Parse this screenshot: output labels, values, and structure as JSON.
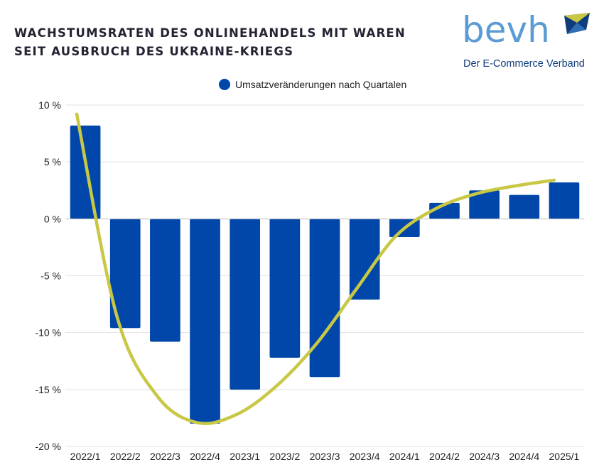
{
  "title_lines": [
    "WACHSTUMSRATEN DES ONLINEHANDELS MIT WAREN",
    "SEIT AUSBRUCH DES UKRAINE-KRIEGS"
  ],
  "logo": {
    "word": "bevh",
    "tagline": "Der E-Commerce Verband",
    "colors": {
      "word": "#5b9bd5",
      "mark_yellow": "#c8c845",
      "mark_blue": "#0f3c7a"
    }
  },
  "chart_data": {
    "type": "bar",
    "title": "WACHSTUMSRATEN DES ONLINEHANDELS MIT WAREN SEIT AUSBRUCH DES UKRAINE-KRIEGS",
    "xlabel": "",
    "ylabel": "",
    "categories": [
      "2022/1",
      "2022/2",
      "2022/3",
      "2022/4",
      "2023/1",
      "2023/2",
      "2023/3",
      "2023/4",
      "2024/1",
      "2024/2",
      "2024/3",
      "2024/4",
      "2025/1"
    ],
    "series": [
      {
        "name": "Umsatzveränderungen nach Quartalen",
        "color": "#0047a9",
        "values": [
          8.2,
          -9.6,
          -10.8,
          -18.0,
          -15.0,
          -12.2,
          -13.9,
          -7.1,
          -1.6,
          1.4,
          2.5,
          2.1,
          3.2
        ]
      }
    ],
    "trend": {
      "color": "#c8c845",
      "values": [
        9.2,
        -8.5,
        -15.5,
        -17.9,
        -17.2,
        -14.7,
        -11.0,
        -6.2,
        -1.5,
        0.9,
        2.2,
        2.9,
        3.4
      ]
    },
    "ylim": [
      -20,
      10
    ],
    "yticks": [
      10,
      5,
      0,
      -5,
      -10,
      -15,
      -20
    ],
    "ytick_labels": [
      "10 %",
      "5 %",
      "0 %",
      "-5 %",
      "-10 %",
      "-15 %",
      "-20 %"
    ],
    "grid": true,
    "legend": {
      "position": "top-center",
      "label": "Umsatzveränderungen nach Quartalen"
    }
  }
}
